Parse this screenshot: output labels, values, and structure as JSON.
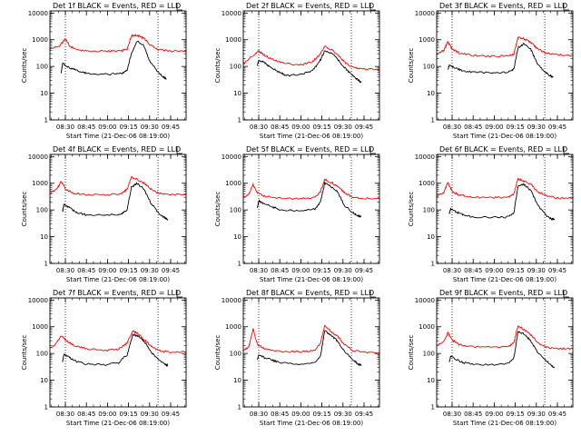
{
  "colors": {
    "events": "#000000",
    "lld": "#ff0000",
    "axis": "#000000",
    "background": "#ffffff"
  },
  "chart_data": [
    {
      "type": "line",
      "title": "Det 1f BLACK = Events, RED = LLD",
      "ylabel": "Counts/sec",
      "xlabel": "Start Time (21-Dec-06 08:19:00)",
      "yscale": "log",
      "ylim": [
        1,
        12000
      ],
      "xlim": [
        "08:19:00",
        "09:56:00"
      ],
      "x_tick_labels": [
        "08:30",
        "08:45",
        "09:00",
        "09:15",
        "09:30",
        "09:45"
      ],
      "y_tick_labels": [
        "1",
        "10",
        "100",
        "1000",
        "10000"
      ],
      "vlines": [
        "08:30",
        "09:36"
      ],
      "series": [
        {
          "name": "LLD",
          "color": "#ff0000",
          "x": [
            "08:19",
            "08:26",
            "08:30",
            "08:33",
            "08:38",
            "08:45",
            "09:00",
            "09:10",
            "09:14",
            "09:17",
            "09:20",
            "09:24",
            "09:27",
            "09:31",
            "09:36",
            "09:45",
            "09:56"
          ],
          "y": [
            450,
            580,
            1100,
            580,
            430,
            380,
            370,
            380,
            450,
            1400,
            1500,
            1300,
            1000,
            600,
            420,
            380,
            380
          ]
        },
        {
          "name": "Events",
          "color": "#000000",
          "x": [
            "08:27",
            "08:28",
            "08:32",
            "08:37",
            "08:42",
            "08:45",
            "09:00",
            "09:10",
            "09:14",
            "09:17",
            "09:21",
            "09:26",
            "09:30",
            "09:36",
            "09:40",
            "09:42"
          ],
          "y": [
            55,
            130,
            95,
            75,
            60,
            55,
            50,
            55,
            70,
            300,
            900,
            600,
            160,
            60,
            40,
            35
          ]
        }
      ]
    },
    {
      "type": "line",
      "title": "Det 2f BLACK = Events, RED = LLD",
      "ylabel": "Counts/sec",
      "xlabel": "Start Time (21-Dec-06 08:19:00)",
      "yscale": "log",
      "ylim": [
        1,
        12000
      ],
      "xlim": [
        "08:19:00",
        "09:56:00"
      ],
      "x_tick_labels": [
        "08:30",
        "08:45",
        "09:00",
        "09:15",
        "09:30",
        "09:45"
      ],
      "y_tick_labels": [
        "1",
        "10",
        "100",
        "1000",
        "10000"
      ],
      "vlines": [
        "08:30",
        "09:36"
      ],
      "series": [
        {
          "name": "LLD",
          "color": "#ff0000",
          "x": [
            "08:19",
            "08:24",
            "08:30",
            "08:34",
            "08:40",
            "08:48",
            "09:00",
            "09:08",
            "09:13",
            "09:17",
            "09:22",
            "09:27",
            "09:32",
            "09:38",
            "09:45",
            "09:56"
          ],
          "y": [
            120,
            220,
            380,
            260,
            180,
            130,
            115,
            150,
            260,
            550,
            430,
            250,
            130,
            90,
            80,
            80
          ]
        },
        {
          "name": "Events",
          "color": "#000000",
          "x": [
            "08:29",
            "08:30",
            "08:33",
            "08:38",
            "08:45",
            "08:50",
            "09:00",
            "09:08",
            "09:13",
            "09:17",
            "09:23",
            "09:28",
            "09:33",
            "09:37",
            "09:41",
            "09:43"
          ],
          "y": [
            110,
            160,
            150,
            95,
            60,
            45,
            50,
            70,
            140,
            380,
            280,
            140,
            70,
            45,
            30,
            25
          ]
        }
      ]
    },
    {
      "type": "line",
      "title": "Det 3f BLACK = Events, RED = LLD",
      "ylabel": "Counts/sec",
      "xlabel": "Start Time (21-Dec-06 08:19:00)",
      "yscale": "log",
      "ylim": [
        1,
        12000
      ],
      "xlim": [
        "08:19:00",
        "09:56:00"
      ],
      "x_tick_labels": [
        "08:30",
        "08:45",
        "09:00",
        "09:15",
        "09:30",
        "09:45"
      ],
      "y_tick_labels": [
        "1",
        "10",
        "100",
        "1000",
        "10000"
      ],
      "vlines": [
        "08:30",
        "09:36"
      ],
      "series": [
        {
          "name": "LLD",
          "color": "#ff0000",
          "x": [
            "08:19",
            "08:24",
            "08:27",
            "08:30",
            "08:35",
            "08:45",
            "09:00",
            "09:10",
            "09:14",
            "09:17",
            "09:21",
            "09:26",
            "09:30",
            "09:36",
            "09:45",
            "09:56"
          ],
          "y": [
            280,
            400,
            850,
            450,
            320,
            260,
            240,
            250,
            300,
            1200,
            1100,
            800,
            500,
            330,
            270,
            260
          ]
        },
        {
          "name": "Events",
          "color": "#000000",
          "x": [
            "08:27",
            "08:28",
            "08:32",
            "08:37",
            "08:45",
            "09:00",
            "09:10",
            "09:14",
            "09:17",
            "09:21",
            "09:26",
            "09:30",
            "09:36",
            "09:40",
            "09:42"
          ],
          "y": [
            75,
            115,
            90,
            70,
            60,
            58,
            60,
            80,
            500,
            700,
            450,
            150,
            60,
            45,
            40
          ]
        }
      ]
    },
    {
      "type": "line",
      "title": "Det 4f BLACK = Events, RED = LLD",
      "ylabel": "Counts/sec",
      "xlabel": "Start Time (21-Dec-06 08:19:00)",
      "yscale": "log",
      "ylim": [
        1,
        12000
      ],
      "xlim": [
        "08:19:00",
        "09:56:00"
      ],
      "x_tick_labels": [
        "08:30",
        "08:45",
        "09:00",
        "09:15",
        "09:30",
        "09:45"
      ],
      "y_tick_labels": [
        "1",
        "10",
        "100",
        "1000",
        "10000"
      ],
      "vlines": [
        "08:30",
        "09:36"
      ],
      "series": [
        {
          "name": "LLD",
          "color": "#ff0000",
          "x": [
            "08:19",
            "08:24",
            "08:27",
            "08:30",
            "08:35",
            "08:45",
            "09:00",
            "09:10",
            "09:14",
            "09:17",
            "09:21",
            "09:26",
            "09:31",
            "09:37",
            "09:45",
            "09:56"
          ],
          "y": [
            420,
            600,
            1200,
            620,
            430,
            380,
            370,
            400,
            600,
            1700,
            1400,
            1000,
            600,
            420,
            380,
            380
          ]
        },
        {
          "name": "Events",
          "color": "#000000",
          "x": [
            "08:28",
            "08:29",
            "08:33",
            "08:38",
            "08:45",
            "09:00",
            "09:10",
            "09:14",
            "09:17",
            "09:21",
            "09:26",
            "09:31",
            "09:37",
            "09:41",
            "09:43"
          ],
          "y": [
            90,
            160,
            120,
            80,
            65,
            65,
            70,
            100,
            700,
            1000,
            600,
            180,
            70,
            50,
            45
          ]
        }
      ]
    },
    {
      "type": "line",
      "title": "Det 5f BLACK = Events, RED = LLD",
      "ylabel": "Counts/sec",
      "xlabel": "Start Time (21-Dec-06 08:19:00)",
      "yscale": "log",
      "ylim": [
        1,
        12000
      ],
      "xlim": [
        "08:19:00",
        "09:56:00"
      ],
      "x_tick_labels": [
        "08:30",
        "08:45",
        "09:00",
        "09:15",
        "09:30",
        "09:45"
      ],
      "y_tick_labels": [
        "1",
        "10",
        "100",
        "1000",
        "10000"
      ],
      "vlines": [
        "08:30",
        "09:36"
      ],
      "series": [
        {
          "name": "LLD",
          "color": "#ff0000",
          "x": [
            "08:19",
            "08:23",
            "08:26",
            "08:29",
            "08:34",
            "08:45",
            "09:00",
            "09:10",
            "09:14",
            "09:17",
            "09:21",
            "09:26",
            "09:31",
            "09:37",
            "09:45",
            "09:56"
          ],
          "y": [
            300,
            400,
            900,
            450,
            330,
            280,
            260,
            300,
            500,
            1400,
            1100,
            800,
            450,
            300,
            270,
            260
          ]
        },
        {
          "name": "Events",
          "color": "#000000",
          "x": [
            "08:29",
            "08:30",
            "08:34",
            "08:40",
            "08:45",
            "09:00",
            "09:10",
            "09:14",
            "09:17",
            "09:21",
            "09:26",
            "09:31",
            "09:37",
            "09:41",
            "09:43"
          ],
          "y": [
            120,
            220,
            170,
            130,
            100,
            90,
            110,
            200,
            1000,
            800,
            500,
            150,
            80,
            60,
            55
          ]
        }
      ]
    },
    {
      "type": "line",
      "title": "Det 6f BLACK = Events, RED = LLD",
      "ylabel": "Counts/sec",
      "xlabel": "Start Time (21-Dec-06 08:19:00)",
      "yscale": "log",
      "ylim": [
        1,
        12000
      ],
      "xlim": [
        "08:19:00",
        "09:56:00"
      ],
      "x_tick_labels": [
        "08:30",
        "08:45",
        "09:00",
        "09:15",
        "09:30",
        "09:45"
      ],
      "y_tick_labels": [
        "1",
        "10",
        "100",
        "1000",
        "10000"
      ],
      "vlines": [
        "08:30",
        "09:36"
      ],
      "series": [
        {
          "name": "LLD",
          "color": "#ff0000",
          "x": [
            "08:19",
            "08:24",
            "08:27",
            "08:30",
            "08:35",
            "08:45",
            "09:00",
            "09:10",
            "09:14",
            "09:17",
            "09:21",
            "09:26",
            "09:31",
            "09:37",
            "09:45",
            "09:56"
          ],
          "y": [
            330,
            450,
            1100,
            500,
            360,
            300,
            290,
            300,
            400,
            1500,
            1200,
            900,
            500,
            330,
            280,
            280
          ]
        },
        {
          "name": "Events",
          "color": "#000000",
          "x": [
            "08:28",
            "08:29",
            "08:33",
            "08:38",
            "08:45",
            "09:00",
            "09:10",
            "09:14",
            "09:17",
            "09:21",
            "09:26",
            "09:31",
            "09:37",
            "09:41",
            "09:43"
          ],
          "y": [
            70,
            110,
            85,
            65,
            55,
            52,
            55,
            75,
            800,
            900,
            550,
            150,
            60,
            45,
            45
          ]
        }
      ]
    },
    {
      "type": "line",
      "title": "Det 7f BLACK = Events, RED = LLD",
      "ylabel": "Counts/sec",
      "xlabel": "Start Time (21-Dec-06 08:19:00)",
      "yscale": "log",
      "ylim": [
        1,
        12000
      ],
      "xlim": [
        "08:19:00",
        "09:56:00"
      ],
      "x_tick_labels": [
        "08:30",
        "08:45",
        "09:00",
        "09:15",
        "09:30",
        "09:45"
      ],
      "y_tick_labels": [
        "1",
        "10",
        "100",
        "1000",
        "10000"
      ],
      "vlines": [
        "08:30",
        "09:36"
      ],
      "series": [
        {
          "name": "LLD",
          "color": "#ff0000",
          "x": [
            "08:19",
            "08:23",
            "08:27",
            "08:31",
            "08:36",
            "08:45",
            "09:00",
            "09:08",
            "09:14",
            "09:18",
            "09:22",
            "09:27",
            "09:32",
            "09:38",
            "09:45",
            "09:56"
          ],
          "y": [
            150,
            220,
            450,
            300,
            200,
            150,
            130,
            150,
            250,
            700,
            550,
            300,
            170,
            120,
            115,
            115
          ]
        },
        {
          "name": "Events",
          "color": "#000000",
          "x": [
            "08:28",
            "08:29",
            "08:33",
            "08:38",
            "08:45",
            "09:00",
            "09:08",
            "09:14",
            "09:18",
            "09:22",
            "09:27",
            "09:32",
            "09:37",
            "09:41",
            "09:43"
          ],
          "y": [
            50,
            95,
            70,
            50,
            40,
            38,
            45,
            90,
            500,
            450,
            250,
            100,
            55,
            40,
            35
          ]
        }
      ]
    },
    {
      "type": "line",
      "title": "Det 8f BLACK = Events, RED = LLD",
      "ylabel": "Counts/sec",
      "xlabel": "Start Time (21-Dec-06 08:19:00)",
      "yscale": "log",
      "ylim": [
        1,
        12000
      ],
      "xlim": [
        "08:19:00",
        "09:56:00"
      ],
      "x_tick_labels": [
        "08:30",
        "08:45",
        "09:00",
        "09:15",
        "09:30",
        "09:45"
      ],
      "y_tick_labels": [
        "1",
        "10",
        "100",
        "1000",
        "10000"
      ],
      "vlines": [
        "08:30",
        "09:36"
      ],
      "series": [
        {
          "name": "LLD",
          "color": "#ff0000",
          "x": [
            "08:19",
            "08:23",
            "08:26",
            "08:29",
            "08:34",
            "08:45",
            "09:00",
            "09:10",
            "09:14",
            "09:17",
            "09:21",
            "09:26",
            "09:31",
            "09:37",
            "09:45",
            "09:56"
          ],
          "y": [
            130,
            180,
            850,
            220,
            150,
            120,
            115,
            130,
            250,
            1100,
            700,
            450,
            220,
            130,
            110,
            110
          ]
        },
        {
          "name": "Events",
          "color": "#000000",
          "x": [
            "08:29",
            "08:30",
            "08:34",
            "08:40",
            "08:45",
            "09:00",
            "09:10",
            "09:14",
            "09:17",
            "09:21",
            "09:26",
            "09:31",
            "09:37",
            "09:41",
            "09:43"
          ],
          "y": [
            55,
            90,
            70,
            55,
            45,
            40,
            45,
            80,
            700,
            500,
            300,
            120,
            60,
            40,
            35
          ]
        }
      ]
    },
    {
      "type": "line",
      "title": "Det 9f BLACK = Events, RED = LLD",
      "ylabel": "Counts/sec",
      "xlabel": "Start Time (21-Dec-06 08:19:00)",
      "yscale": "log",
      "ylim": [
        1,
        12000
      ],
      "xlim": [
        "08:19:00",
        "09:56:00"
      ],
      "x_tick_labels": [
        "08:30",
        "08:45",
        "09:00",
        "09:15",
        "09:30",
        "09:45"
      ],
      "y_tick_labels": [
        "1",
        "10",
        "100",
        "1000",
        "10000"
      ],
      "vlines": [
        "08:30",
        "09:36"
      ],
      "series": [
        {
          "name": "LLD",
          "color": "#ff0000",
          "x": [
            "08:19",
            "08:24",
            "08:27",
            "08:30",
            "08:35",
            "08:45",
            "09:00",
            "09:10",
            "09:14",
            "09:17",
            "09:21",
            "09:26",
            "09:31",
            "09:37",
            "09:45",
            "09:56"
          ],
          "y": [
            200,
            280,
            600,
            320,
            220,
            180,
            165,
            180,
            260,
            1100,
            800,
            500,
            260,
            170,
            150,
            150
          ]
        },
        {
          "name": "Events",
          "color": "#000000",
          "x": [
            "08:28",
            "08:29",
            "08:33",
            "08:38",
            "08:45",
            "09:00",
            "09:10",
            "09:14",
            "09:17",
            "09:21",
            "09:26",
            "09:31",
            "09:37",
            "09:41",
            "09:43"
          ],
          "y": [
            50,
            80,
            60,
            45,
            40,
            38,
            42,
            70,
            650,
            550,
            300,
            110,
            55,
            35,
            30
          ]
        }
      ]
    }
  ]
}
